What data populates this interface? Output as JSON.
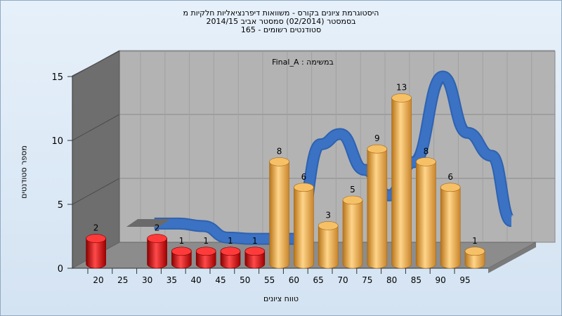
{
  "chart_data": {
    "type": "bar",
    "title_lines": [
      "היסטוגרמת ציונים בקורס - משוואות דיפרנציאליות חלקיות מ",
      "בסמסטר  (02/2014)  סמסטר אביב 2014/15",
      "סטודנטים רשומים - 165"
    ],
    "annotation": "Final_A : במשימה",
    "ylabel": "מספר סטודנטים",
    "xlabel": "טווח ציונים",
    "ylim": [
      0,
      15
    ],
    "yticks": [
      "0",
      "5",
      "10",
      "15"
    ],
    "xticks": [
      "20",
      "25",
      "30",
      "35",
      "40",
      "45",
      "50",
      "55",
      "60",
      "65",
      "70",
      "75",
      "80",
      "85",
      "90",
      "95"
    ],
    "bins": [
      17.5,
      30,
      35,
      40,
      45,
      50,
      55,
      60,
      65,
      70,
      75,
      80,
      85,
      90,
      95
    ],
    "values": [
      2,
      2,
      1,
      1,
      1,
      1,
      8,
      6,
      3,
      5,
      9,
      13,
      8,
      6,
      1
    ],
    "data_labels": [
      "2",
      "2",
      "1",
      "1",
      "1",
      "1",
      "8",
      "6",
      "3",
      "5",
      "9",
      "13",
      "8",
      "6",
      "1"
    ],
    "bar_colors": [
      "#e01818",
      "#e01818",
      "#e01818",
      "#e01818",
      "#e01818",
      "#e01818",
      "#e8a640",
      "#e8a640",
      "#e8a640",
      "#e8a640",
      "#e8a640",
      "#e8a640",
      "#e8a640",
      "#e8a640",
      "#e8a640"
    ],
    "trend_line": {
      "x": [
        27,
        32,
        37,
        42,
        47,
        52,
        56,
        61,
        65,
        70,
        75,
        80,
        86,
        91,
        96,
        100
      ],
      "y": [
        2.4,
        2.4,
        2.2,
        1.3,
        1.2,
        1.2,
        1.2,
        8.6,
        9.4,
        6.6,
        4.6,
        7.2,
        13.9,
        9.5,
        7.7,
        2.6
      ]
    },
    "colors": {
      "below_pass": "#e01818",
      "above_pass": "#e8a640",
      "trend": "#3b72c4",
      "floor": "#8c8c8c",
      "wall": "#b3b3b3"
    },
    "grid": true
  }
}
